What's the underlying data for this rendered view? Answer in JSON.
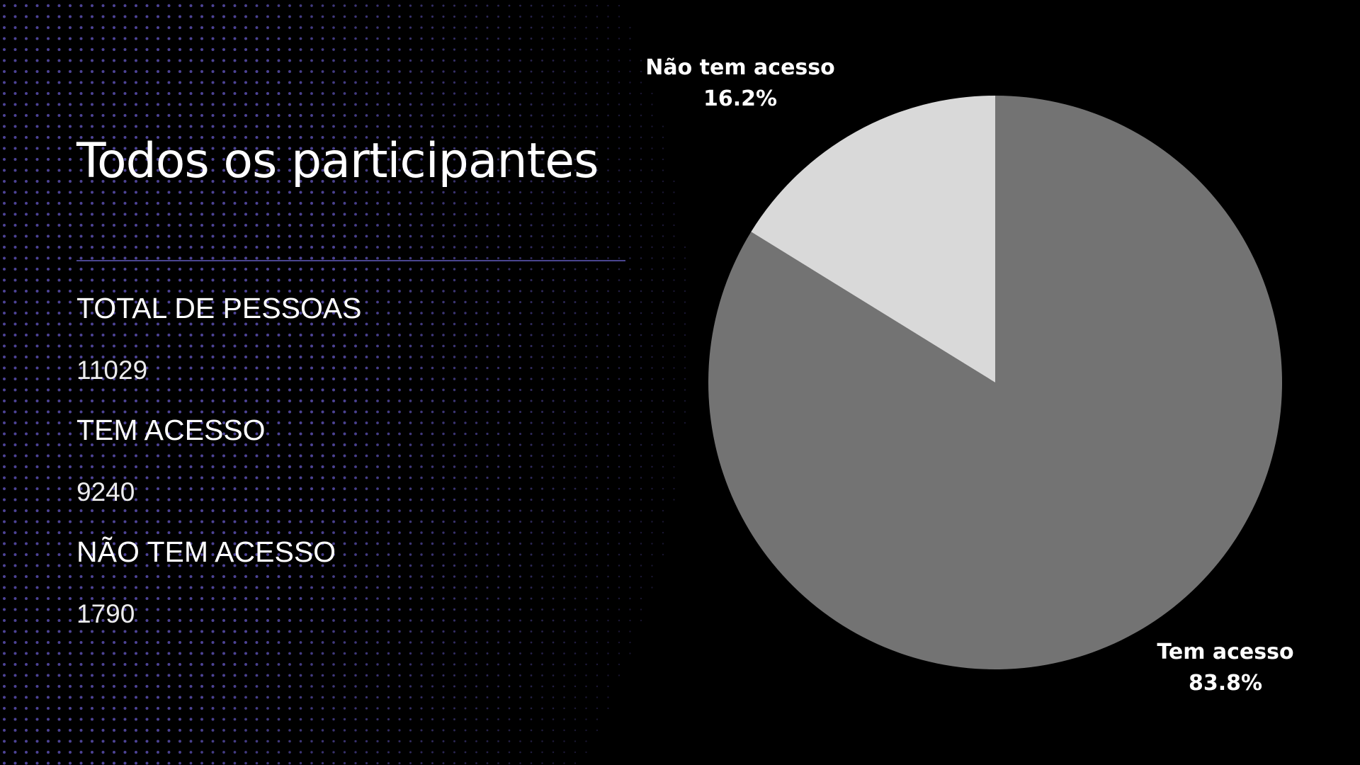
{
  "title": "Todos os participantes",
  "stats": [
    {
      "label": "TOTAL DE PESSOAS",
      "value": "11029"
    },
    {
      "label": "TEM ACESSO",
      "value": "9240"
    },
    {
      "label": "NÃO TEM ACESSO",
      "value": "1790"
    }
  ],
  "colors": {
    "background": "#000000",
    "dots": "#5a4fb0",
    "divider": "#4a4590",
    "slice_tem_acesso": "#737373",
    "slice_nao_tem_acesso": "#d9d9d9"
  },
  "chart_data": {
    "type": "pie",
    "title": "",
    "slices": [
      {
        "name": "Tem acesso",
        "value": 83.8,
        "value_label": "83.8%",
        "color": "#737373"
      },
      {
        "name": "Não tem acesso",
        "value": 16.2,
        "value_label": "16.2%",
        "color": "#d9d9d9"
      }
    ]
  }
}
